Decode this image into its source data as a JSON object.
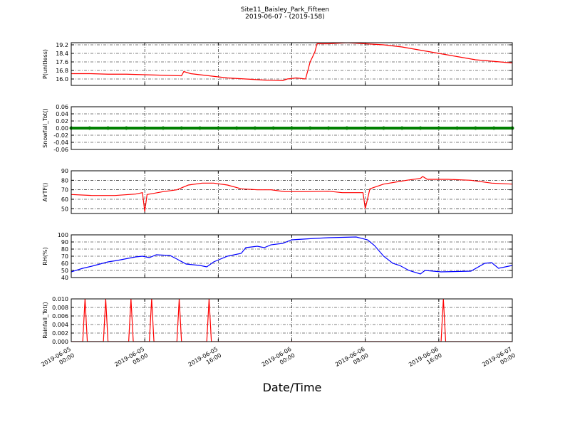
{
  "title": "Site11_Baisley_Park_Fifteen",
  "subtitle": "2019-06-07 - (2019-158)",
  "xlabel": "Date/Time",
  "xlim": [
    "2019-06-05 00:00",
    "2019-06-07 00:00"
  ],
  "xticks": [
    "2019-06-05 00:00",
    "2019-06-05 08:00",
    "2019-06-05 16:00",
    "2019-06-06 00:00",
    "2019-06-06 08:00",
    "2019-06-06 16:00",
    "2019-06-07 00:00"
  ],
  "chart_data": [
    {
      "type": "line",
      "ylabel": "P(unitless)",
      "ylim": [
        15.4,
        19.4
      ],
      "yticks": [
        {
          "value": 16,
          "label": "16.0"
        },
        16.8,
        17.6,
        18.4,
        19.2
      ],
      "grid": true,
      "x": [
        "2019-06-05 00:00",
        "2019-06-05 02:00",
        "2019-06-05 04:00",
        "2019-06-05 06:00",
        "2019-06-05 08:00",
        "2019-06-05 10:00",
        "2019-06-05 12:00",
        "2019-06-05 12:15",
        "2019-06-05 13:00",
        "2019-06-05 15:00",
        "2019-06-05 17:00",
        "2019-06-05 19:00",
        "2019-06-05 21:00",
        "2019-06-05 23:00",
        "2019-06-05 23:30",
        "2019-06-06 00:30",
        "2019-06-06 01:30",
        "2019-06-06 02:00",
        "2019-06-06 02:30",
        "2019-06-06 02:45",
        "2019-06-06 04:00",
        "2019-06-06 06:00",
        "2019-06-06 08:00",
        "2019-06-06 10:00",
        "2019-06-06 12:00",
        "2019-06-06 14:00",
        "2019-06-06 16:00",
        "2019-06-06 18:00",
        "2019-06-06 20:00",
        "2019-06-06 22:00",
        "2019-06-07 00:00"
      ],
      "series": [
        {
          "color": "#ff0000",
          "values": [
            16.5,
            16.5,
            16.45,
            16.45,
            16.4,
            16.35,
            16.3,
            16.7,
            16.5,
            16.3,
            16.1,
            16.0,
            15.9,
            15.85,
            16.0,
            16.1,
            16.0,
            17.6,
            18.5,
            19.3,
            19.3,
            19.4,
            19.3,
            19.2,
            19.0,
            18.7,
            18.4,
            18.1,
            17.8,
            17.65,
            17.5
          ]
        }
      ]
    },
    {
      "type": "line",
      "ylabel": "Snowfall_Tot()",
      "ylim": [
        -0.06,
        0.06
      ],
      "yticks": [
        -0.06,
        -0.04,
        -0.02,
        {
          "value": 0,
          "label": "0.00"
        },
        0.02,
        0.04,
        0.06
      ],
      "grid": true,
      "marker": true,
      "x": [
        "2019-06-05 00:00",
        "2019-06-05 02:00",
        "2019-06-05 04:00",
        "2019-06-05 06:00",
        "2019-06-05 08:00",
        "2019-06-05 10:00",
        "2019-06-05 12:00",
        "2019-06-05 14:00",
        "2019-06-05 16:00",
        "2019-06-05 18:00",
        "2019-06-05 20:00",
        "2019-06-05 22:00",
        "2019-06-06 00:00",
        "2019-06-06 02:00",
        "2019-06-06 04:00",
        "2019-06-06 06:00",
        "2019-06-06 08:00",
        "2019-06-06 10:00",
        "2019-06-06 12:00",
        "2019-06-06 14:00",
        "2019-06-06 16:00",
        "2019-06-06 18:00",
        "2019-06-06 20:00",
        "2019-06-06 22:00",
        "2019-06-07 00:00"
      ],
      "series": [
        {
          "color": "#008000",
          "values": [
            0,
            0,
            0,
            0,
            0,
            0,
            0,
            0,
            0,
            0,
            0,
            0,
            0,
            0,
            0,
            0,
            0,
            0,
            0,
            0,
            0,
            0,
            0,
            0,
            0
          ]
        }
      ]
    },
    {
      "type": "line",
      "ylabel": "AirTF()",
      "ylim": [
        45,
        90
      ],
      "yticks": [
        50,
        60,
        70,
        80,
        90
      ],
      "grid": true,
      "x": [
        "2019-06-05 00:00",
        "2019-06-05 02:15",
        "2019-06-05 04:45",
        "2019-06-05 07:00",
        "2019-06-05 07:45",
        "2019-06-05 08:00",
        "2019-06-05 08:15",
        "2019-06-05 10:00",
        "2019-06-05 11:30",
        "2019-06-05 12:45",
        "2019-06-05 14:15",
        "2019-06-05 15:30",
        "2019-06-05 17:00",
        "2019-06-05 18:30",
        "2019-06-05 20:15",
        "2019-06-05 21:45",
        "2019-06-05 23:15",
        "2019-06-06 01:30",
        "2019-06-06 04:00",
        "2019-06-06 05:30",
        "2019-06-06 07:45",
        "2019-06-06 08:00",
        "2019-06-06 08:30",
        "2019-06-06 10:00",
        "2019-06-06 12:30",
        "2019-06-06 14:00",
        "2019-06-06 14:15",
        "2019-06-06 14:45",
        "2019-06-06 17:00",
        "2019-06-06 19:30",
        "2019-06-06 21:45",
        "2019-06-07 00:00"
      ],
      "series": [
        {
          "color": "#ff0000",
          "values": [
            65,
            64,
            64,
            65.5,
            67,
            47,
            65,
            68,
            70,
            75,
            77,
            77,
            75,
            71,
            70,
            70,
            68,
            68,
            68.5,
            67,
            67,
            50,
            71,
            76,
            80,
            82,
            84,
            81,
            81,
            80,
            77,
            76
          ]
        }
      ]
    },
    {
      "type": "line",
      "ylabel": "RH(%)",
      "ylim": [
        40,
        100
      ],
      "yticks": [
        40,
        50,
        60,
        70,
        80,
        90,
        100
      ],
      "grid": true,
      "x": [
        "2019-06-05 00:00",
        "2019-06-05 01:15",
        "2019-06-05 02:15",
        "2019-06-05 04:00",
        "2019-06-05 05:00",
        "2019-06-05 07:00",
        "2019-06-05 07:45",
        "2019-06-05 08:30",
        "2019-06-05 09:15",
        "2019-06-05 10:45",
        "2019-06-05 11:30",
        "2019-06-05 12:30",
        "2019-06-05 14:00",
        "2019-06-05 14:45",
        "2019-06-05 15:30",
        "2019-06-05 17:00",
        "2019-06-05 18:30",
        "2019-06-05 19:00",
        "2019-06-05 20:15",
        "2019-06-05 21:00",
        "2019-06-05 21:45",
        "2019-06-05 23:00",
        "2019-06-06 00:00",
        "2019-06-06 02:30",
        "2019-06-06 04:00",
        "2019-06-06 07:00",
        "2019-06-06 08:15",
        "2019-06-06 09:00",
        "2019-06-06 10:00",
        "2019-06-06 11:00",
        "2019-06-06 11:45",
        "2019-06-06 12:45",
        "2019-06-06 14:00",
        "2019-06-06 14:30",
        "2019-06-06 16:15",
        "2019-06-06 19:30",
        "2019-06-06 21:00",
        "2019-06-06 21:45",
        "2019-06-06 22:30",
        "2019-06-07 00:00"
      ],
      "series": [
        {
          "color": "#0000ff",
          "values": [
            48,
            53,
            56,
            62,
            64,
            69,
            70,
            68,
            72,
            71,
            66,
            59,
            57,
            55,
            62,
            70,
            74,
            82,
            84,
            82,
            86,
            88,
            93,
            95,
            96,
            97,
            93,
            85,
            70,
            60,
            57,
            50,
            45,
            50,
            48,
            49,
            60,
            61,
            53,
            57
          ]
        }
      ]
    },
    {
      "type": "line",
      "ylabel": "Rainfall_Tot()",
      "ylim": [
        0,
        0.01
      ],
      "yticks": [
        {
          "value": 0,
          "label": "0.000"
        },
        0.002,
        0.004,
        0.006,
        0.008,
        {
          "value": 0.01,
          "label": "0.010"
        }
      ],
      "grid": true,
      "x": [
        "2019-06-05 00:00",
        "2019-06-05 01:15",
        "2019-06-05 01:30",
        "2019-06-05 01:45",
        "2019-06-05 03:30",
        "2019-06-05 03:45",
        "2019-06-05 04:00",
        "2019-06-05 06:15",
        "2019-06-05 06:30",
        "2019-06-05 06:45",
        "2019-06-05 08:30",
        "2019-06-05 08:45",
        "2019-06-05 09:00",
        "2019-06-05 11:30",
        "2019-06-05 11:45",
        "2019-06-05 12:00",
        "2019-06-05 14:45",
        "2019-06-05 15:00",
        "2019-06-05 15:15",
        "2019-06-06 16:15",
        "2019-06-06 16:30",
        "2019-06-06 16:45",
        "2019-06-07 00:00"
      ],
      "series": [
        {
          "color": "#ff0000",
          "values": [
            0,
            0,
            0.01,
            0,
            0,
            0.01,
            0,
            0,
            0.01,
            0,
            0,
            0.01,
            0,
            0,
            0.01,
            0,
            0,
            0.01,
            0,
            0,
            0.01,
            0,
            0
          ]
        }
      ]
    }
  ]
}
